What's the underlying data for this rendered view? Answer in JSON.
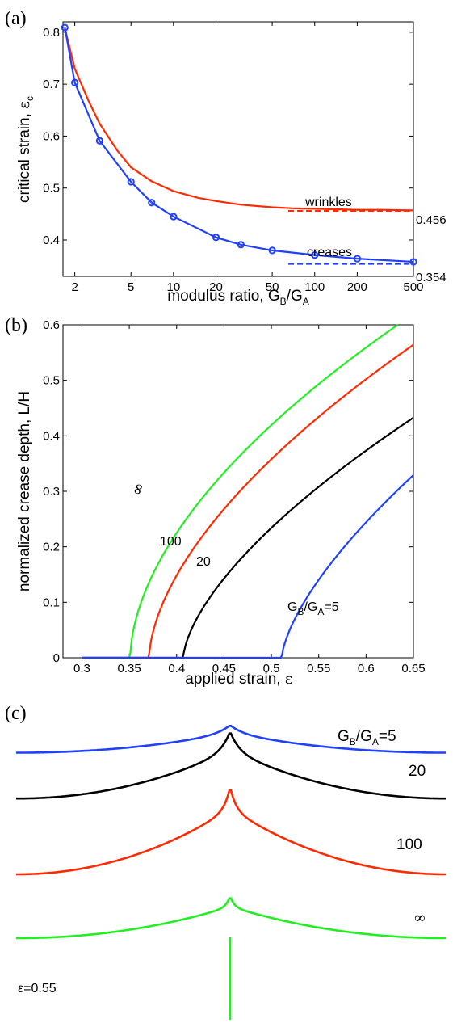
{
  "chart_data": [
    {
      "panel": "(a)",
      "type": "line",
      "xscale": "log",
      "xlabel": "modulus ratio, G_B/G_A",
      "ylabel": "critical strain, ε_c",
      "xlim": [
        1.65,
        500
      ],
      "ylim": [
        0.33,
        0.82
      ],
      "xticks": [
        2,
        5,
        10,
        20,
        50,
        100,
        200,
        500
      ],
      "yticks": [
        0.4,
        0.5,
        0.6,
        0.7,
        0.8
      ],
      "series": [
        {
          "name": "wrinkles",
          "color": "#ff2a00",
          "x": [
            1.7,
            2,
            2.5,
            3,
            4,
            5,
            7,
            10,
            15,
            20,
            30,
            50,
            70,
            100,
            150,
            200,
            300,
            500
          ],
          "y": [
            0.808,
            0.73,
            0.668,
            0.624,
            0.572,
            0.54,
            0.513,
            0.494,
            0.481,
            0.475,
            0.468,
            0.463,
            0.461,
            0.46,
            0.459,
            0.458,
            0.458,
            0.457
          ]
        },
        {
          "name": "creases",
          "color": "#2040ff",
          "markers": true,
          "x": [
            1.7,
            2,
            3,
            5,
            7,
            10,
            20,
            30,
            50,
            100,
            200,
            500
          ],
          "y": [
            0.809,
            0.703,
            0.591,
            0.512,
            0.472,
            0.445,
            0.405,
            0.391,
            0.38,
            0.371,
            0.364,
            0.358
          ]
        }
      ],
      "asymptotes": [
        {
          "series": "wrinkles",
          "value": 0.456,
          "label": "0.456"
        },
        {
          "series": "creases",
          "value": 0.354,
          "label": "0.354"
        }
      ]
    },
    {
      "panel": "(b)",
      "type": "line",
      "xlabel": "applied strain, ε",
      "ylabel": "normalized crease depth, L/H",
      "xlim": [
        0.28,
        0.65
      ],
      "ylim": [
        0,
        0.6
      ],
      "xticks": [
        0.3,
        0.35,
        0.4,
        0.45,
        0.5,
        0.55,
        0.6,
        0.65
      ],
      "yticks": [
        0,
        0.1,
        0.2,
        0.3,
        0.4,
        0.5,
        0.6
      ],
      "series": [
        {
          "label": "∞",
          "color": "#22ee22",
          "onset": 0.351,
          "k": 1.218,
          "p": 0.56
        },
        {
          "label": "100",
          "color": "#ff2a00",
          "onset": 0.371,
          "k": 1.198,
          "p": 0.59
        },
        {
          "label": "20",
          "color": "#000000",
          "onset": 0.407,
          "k": 1.07,
          "p": 0.64
        },
        {
          "label": "G_B/G_A=5",
          "color": "#2040ff",
          "onset": 0.511,
          "k": 1.235,
          "p": 0.67
        }
      ]
    },
    {
      "panel": "(c)",
      "type": "line",
      "annotation": "ε=0.55",
      "series": [
        {
          "label": "G_B/G_A=5",
          "color": "#2040ff"
        },
        {
          "label": "20",
          "color": "#000000"
        },
        {
          "label": "100",
          "color": "#ff2a00"
        },
        {
          "label": "∞",
          "color": "#22ee22"
        }
      ]
    }
  ]
}
